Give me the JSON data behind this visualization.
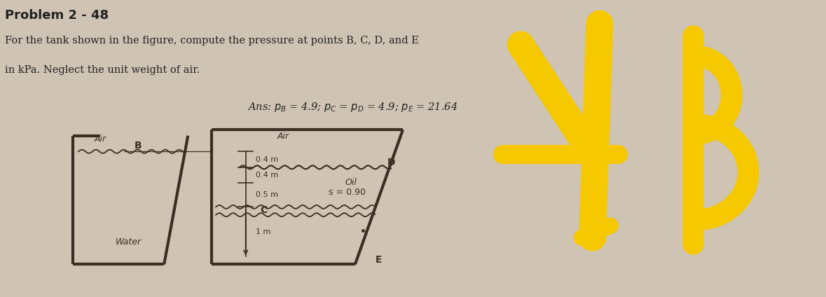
{
  "title": "Problem 2 - 48",
  "desc_line1": "For the tank shown in the figure, compute the pressure at points B, C, D, and E",
  "desc_line2": "in kPa. Neglect the unit weight of air.",
  "ans_text": "Ans: $p_B$ = 4.9; $p_C$ = $p_D$ = 4.9; $p_E$ = 21.64",
  "bg_color": "#cfc4b4",
  "right_bg_color": "#f5f2ed",
  "tank_lw": 3.0,
  "tank_color": "#3a2e22",
  "text_color": "#222222",
  "yellow_color": "#f5c800",
  "water_label": "Water",
  "air_label": "Air",
  "oil_label": "Oil",
  "oil_s_label": "s = 0.90",
  "dim_04a": "0.4 m",
  "dim_04b": "0.4 m",
  "dim_05": "0.5 m",
  "dim_1": "1 m",
  "pt_B": "B",
  "pt_C": "C",
  "pt_D": "D",
  "pt_E": "E"
}
